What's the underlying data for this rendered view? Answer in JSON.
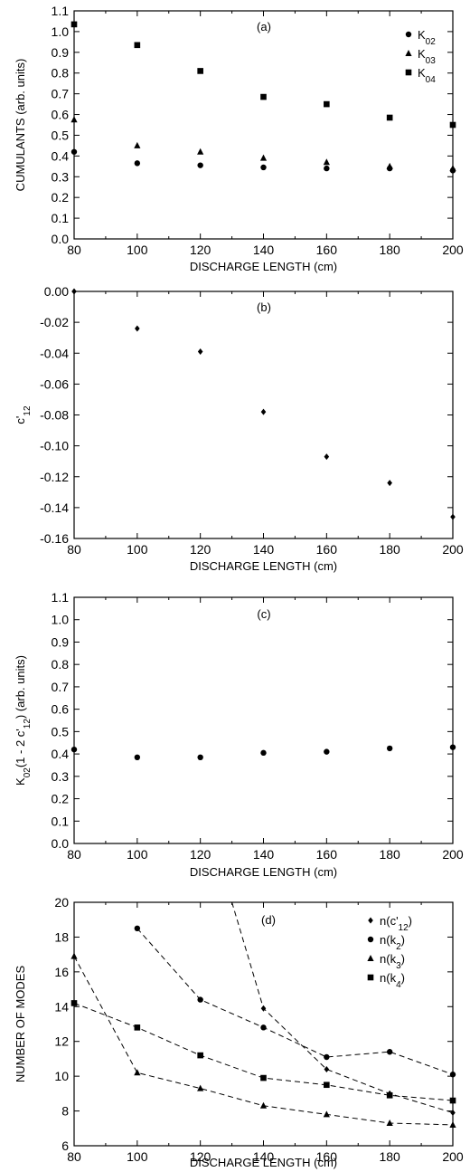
{
  "chart_data": [
    {
      "type": "scatter",
      "panel_label": "(a)",
      "xlabel": "DISCHARGE LENGTH  (cm)",
      "ylabel": "CUMULANTS  (arb. units)",
      "xlim": [
        80,
        200
      ],
      "ylim": [
        0.0,
        1.1
      ],
      "xticks": [
        "80",
        "100",
        "120",
        "140",
        "160",
        "180",
        "200"
      ],
      "yticks": [
        "0.0",
        "0.1",
        "0.2",
        "0.3",
        "0.4",
        "0.5",
        "0.6",
        "0.7",
        "0.8",
        "0.9",
        "1.0",
        "1.1"
      ],
      "legend_position": "top-right",
      "grid": false,
      "series": [
        {
          "name": "K02",
          "marker": "circle",
          "x": [
            80,
            100,
            120,
            140,
            160,
            180,
            200
          ],
          "y": [
            0.42,
            0.365,
            0.355,
            0.345,
            0.34,
            0.34,
            0.33
          ]
        },
        {
          "name": "K03",
          "marker": "triangle",
          "x": [
            80,
            100,
            120,
            140,
            160,
            180,
            200
          ],
          "y": [
            0.575,
            0.45,
            0.42,
            0.39,
            0.37,
            0.35,
            0.34
          ]
        },
        {
          "name": "K04",
          "marker": "square",
          "x": [
            80,
            100,
            120,
            140,
            160,
            180,
            200
          ],
          "y": [
            1.035,
            0.935,
            0.81,
            0.685,
            0.65,
            0.585,
            0.55
          ]
        }
      ]
    },
    {
      "type": "scatter",
      "panel_label": "(b)",
      "xlabel": "DISCHARGE LENGTH  (cm)",
      "ylabel": "c'12",
      "xlim": [
        80,
        200
      ],
      "ylim": [
        -0.16,
        0.0
      ],
      "xticks": [
        "80",
        "100",
        "120",
        "140",
        "160",
        "180",
        "200"
      ],
      "yticks": [
        "0.00",
        "-0.02",
        "-0.04",
        "-0.06",
        "-0.08",
        "-0.10",
        "-0.12",
        "-0.14",
        "-0.16"
      ],
      "grid": false,
      "series": [
        {
          "marker": "diamond",
          "x": [
            80,
            100,
            120,
            140,
            160,
            180,
            200
          ],
          "y": [
            0.0,
            -0.024,
            -0.039,
            -0.078,
            -0.107,
            -0.124,
            -0.146
          ]
        }
      ]
    },
    {
      "type": "scatter",
      "panel_label": "(c)",
      "xlabel": "DISCHARGE LENGTH  (cm)",
      "ylabel": "K02(1 - 2 c'12)  (arb. units)",
      "xlim": [
        80,
        200
      ],
      "ylim": [
        0.0,
        1.1
      ],
      "xticks": [
        "80",
        "100",
        "120",
        "140",
        "160",
        "180",
        "200"
      ],
      "yticks": [
        "0.0",
        "0.1",
        "0.2",
        "0.3",
        "0.4",
        "0.5",
        "0.6",
        "0.7",
        "0.8",
        "0.9",
        "1.0",
        "1.1"
      ],
      "grid": false,
      "series": [
        {
          "marker": "circle",
          "x": [
            80,
            100,
            120,
            140,
            160,
            180,
            200
          ],
          "y": [
            0.42,
            0.385,
            0.385,
            0.405,
            0.41,
            0.425,
            0.43
          ]
        }
      ]
    },
    {
      "type": "line",
      "panel_label": "(d)",
      "xlabel": "DISCHARGE LENGTH  (cm)",
      "ylabel": "NUMBER OF MODES",
      "xlim": [
        80,
        200
      ],
      "ylim": [
        6,
        20
      ],
      "xticks": [
        "80",
        "100",
        "120",
        "140",
        "160",
        "180",
        "200"
      ],
      "yticks": [
        "6",
        "8",
        "10",
        "12",
        "14",
        "16",
        "18",
        "20"
      ],
      "legend_position": "top-right",
      "grid": false,
      "series": [
        {
          "name": "n(c'12)",
          "marker": "diamond",
          "x": [
            130,
            140,
            160,
            180,
            200
          ],
          "y": [
            20,
            13.9,
            10.4,
            9.0,
            7.9
          ]
        },
        {
          "name": "n(k2)",
          "marker": "circle",
          "x": [
            100,
            120,
            140,
            160,
            180,
            200
          ],
          "y": [
            18.5,
            14.4,
            12.8,
            11.1,
            11.4,
            10.1
          ]
        },
        {
          "name": "n(k3)",
          "marker": "triangle",
          "x": [
            80,
            100,
            120,
            140,
            160,
            180,
            200
          ],
          "y": [
            16.9,
            10.2,
            9.3,
            8.3,
            7.8,
            7.3,
            7.2
          ]
        },
        {
          "name": "n(k4)",
          "marker": "square",
          "x": [
            80,
            100,
            120,
            140,
            160,
            180,
            200
          ],
          "y": [
            14.2,
            12.8,
            11.2,
            9.9,
            9.5,
            8.9,
            8.6
          ]
        }
      ]
    }
  ]
}
